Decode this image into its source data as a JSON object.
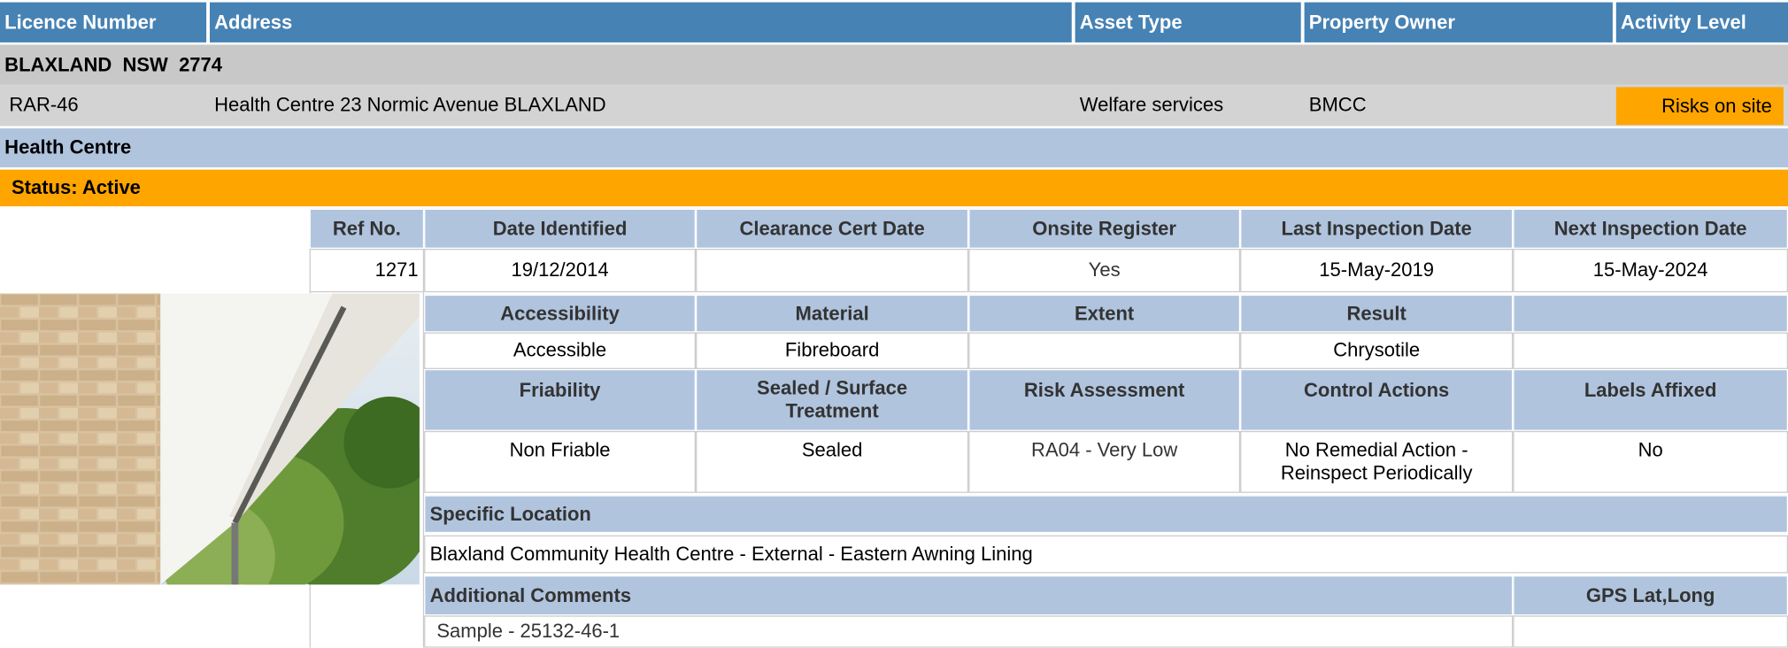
{
  "header": {
    "licence_number": "Licence Number",
    "address": "Address",
    "asset_type": "Asset Type",
    "property_owner": "Property Owner",
    "activity_level": "Activity Level"
  },
  "location": "BLAXLAND  NSW  2774",
  "record": {
    "licence_number": "RAR-46",
    "address": "Health Centre 23 Normic Avenue BLAXLAND",
    "asset_type": "Welfare services",
    "property_owner": "BMCC",
    "activity_level": "Risks on site"
  },
  "site": "Health Centre",
  "status": "Status: Active",
  "inspection": {
    "labels": {
      "ref_no": "Ref No.",
      "date_identified": "Date Identified",
      "clearance_cert_date": "Clearance Cert Date",
      "onsite_register": "Onsite Register",
      "last_inspection_date": "Last Inspection Date",
      "next_inspection_date": "Next Inspection Date"
    },
    "values": {
      "ref_no": "1271",
      "date_identified": "19/12/2014",
      "onsite_register": "Yes",
      "last_inspection_date": "15-May-2019",
      "next_inspection_date": "15-May-2024"
    }
  },
  "material": {
    "labels": {
      "accessibility": "Accessibility",
      "material": "Material",
      "extent": "Extent",
      "result": "Result"
    },
    "values": {
      "accessibility": "Accessible",
      "material": "Fibreboard",
      "result": "Chrysotile"
    }
  },
  "risk": {
    "labels": {
      "friability": "Friability",
      "sealed": "Sealed / Surface Treatment",
      "risk_assessment": "Risk Assessment",
      "control_actions": "Control Actions",
      "labels_affixed": "Labels Affixed"
    },
    "values": {
      "friability": "Non Friable",
      "sealed": "Sealed",
      "risk_assessment": "RA04 - Very Low",
      "control_actions": "No Remedial Action - Reinspect Periodically",
      "labels_affixed": "No"
    }
  },
  "specific_location": {
    "label": "Specific Location",
    "value": "Blaxland Community Health Centre - External - Eastern Awning Lining"
  },
  "comments": {
    "label": "Additional Comments",
    "gps_label": "GPS Lat,Long",
    "value": "Sample - 25132-46-1"
  }
}
